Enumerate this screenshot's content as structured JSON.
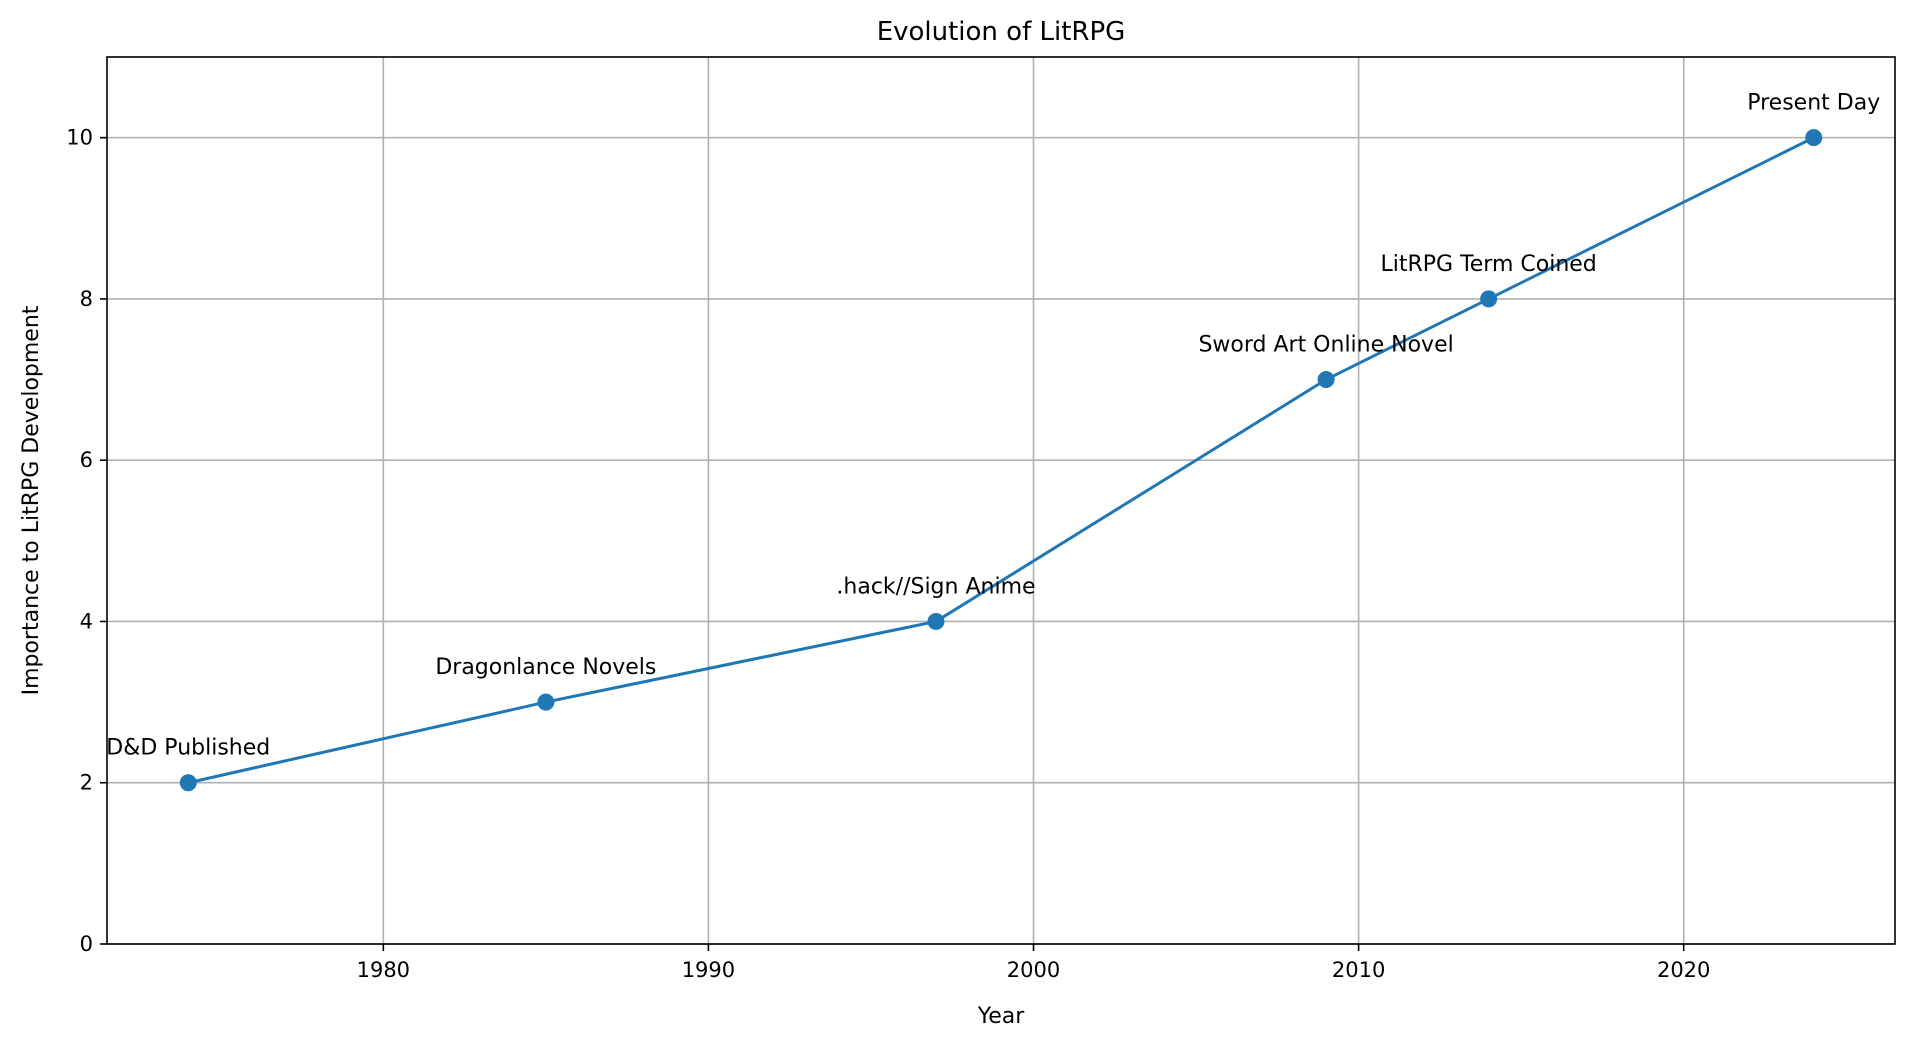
{
  "chart_data": {
    "type": "line",
    "title": "Evolution of LitRPG",
    "xlabel": "Year",
    "ylabel": "Importance to LitRPG Development",
    "xlim": [
      1971.5,
      2026.5
    ],
    "ylim": [
      0,
      11
    ],
    "xticks": [
      1980,
      1990,
      2000,
      2010,
      2020
    ],
    "yticks": [
      0,
      2,
      4,
      6,
      8,
      10
    ],
    "grid": true,
    "series": [
      {
        "color": "#1f77b4",
        "marker": "circle",
        "x": [
          1974,
          1985,
          1997,
          2009,
          2014,
          2024
        ],
        "y": [
          2,
          3,
          4,
          7,
          8,
          10
        ]
      }
    ],
    "annotations": [
      {
        "x": 1974,
        "y": 2,
        "text": "D&D Published"
      },
      {
        "x": 1985,
        "y": 3,
        "text": "Dragonlance Novels"
      },
      {
        "x": 1997,
        "y": 4,
        "text": ".hack//Sign Anime"
      },
      {
        "x": 2009,
        "y": 7,
        "text": "Sword Art Online Novel"
      },
      {
        "x": 2014,
        "y": 8,
        "text": "LitRPG Term Coined"
      },
      {
        "x": 2024,
        "y": 10,
        "text": "Present Day"
      }
    ]
  }
}
